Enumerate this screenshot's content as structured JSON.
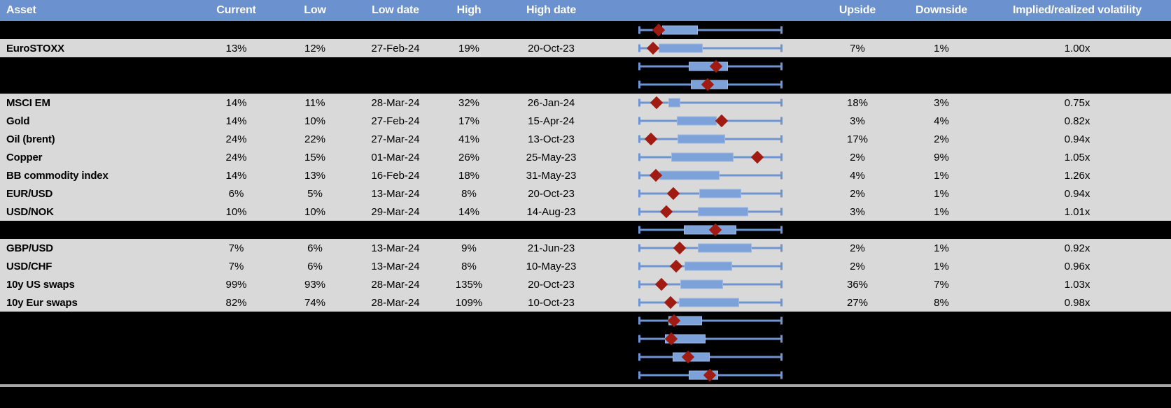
{
  "header": {
    "labels": [
      "Asset",
      "Current",
      "Low",
      "Low date",
      "High",
      "High date",
      "",
      "Upside",
      "Downside",
      "Implied/realized volatility"
    ]
  },
  "colors": {
    "header_bg": "#6b92ce",
    "row_bg": "#d9d9d9",
    "page_bg": "#000000",
    "whisker_blue": "#6e95d1",
    "box_fill_blue": "#7ca2d9",
    "box_border_blue": "#9cb8e4",
    "marker_red": "#a01b12",
    "divider_gray": "#a8a8a8",
    "header_text": "#ffffff",
    "cell_text": "#000000"
  },
  "chart_data": {
    "type": "table",
    "description": "Implied volatility table with per-row box-and-whisker plots; whiskers span the low-high range (normalized 0-100), box marks an inner range, red diamond marks the current level. Spacer rows are blacked-out rows showing only their box plots.",
    "boxplot_units": "percent of whisker span (0 = left whisker end, 100 = right whisker end)",
    "columns": [
      "Asset",
      "Current",
      "Low",
      "Low date",
      "High",
      "High date",
      "Box plot",
      "Upside",
      "Downside",
      "Implied/realized volatility"
    ],
    "rows": [
      {
        "kind": "spacer",
        "asset": "",
        "current": "",
        "low": "",
        "low_date": "",
        "high": "",
        "high_date": "",
        "upside": "",
        "downside": "",
        "ivrv": "",
        "box": {
          "q1": 16.3,
          "q3": 41.2,
          "marker": 13.9
        }
      },
      {
        "kind": "data",
        "asset": "EuroSTOXX",
        "current": "13%",
        "low": "12%",
        "low_date": "27-Feb-24",
        "high": "19%",
        "high_date": "20-Oct-23",
        "upside": "7%",
        "downside": "1%",
        "ivrv": "1.00x",
        "box": {
          "q1": 13.9,
          "q3": 44.6,
          "marker": 9.6
        }
      },
      {
        "kind": "spacer",
        "asset": "",
        "current": "",
        "low": "",
        "low_date": "",
        "high": "",
        "high_date": "",
        "upside": "",
        "downside": "",
        "ivrv": "",
        "box": {
          "q1": 35.0,
          "q3": 62.4,
          "marker": 53.7
        }
      },
      {
        "kind": "spacer",
        "asset": "",
        "current": "",
        "low": "",
        "low_date": "",
        "high": "",
        "high_date": "",
        "upside": "",
        "downside": "",
        "ivrv": "",
        "box": {
          "q1": 36.3,
          "q3": 62.4,
          "marker": 48.2
        }
      },
      {
        "kind": "data",
        "asset": "MSCI EM",
        "current": "14%",
        "low": "11%",
        "low_date": "28-Mar-24",
        "high": "32%",
        "high_date": "26-Jan-24",
        "upside": "18%",
        "downside": "3%",
        "ivrv": "0.75x",
        "box": {
          "q1": 20.7,
          "q3": 28.9,
          "marker": 12.3
        }
      },
      {
        "kind": "data",
        "asset": "Gold",
        "current": "14%",
        "low": "10%",
        "low_date": "27-Feb-24",
        "high": "17%",
        "high_date": "15-Apr-24",
        "upside": "3%",
        "downside": "4%",
        "ivrv": "0.82x",
        "box": {
          "q1": 26.5,
          "q3": 54.2,
          "marker": 57.8
        }
      },
      {
        "kind": "data",
        "asset": "Oil (brent)",
        "current": "24%",
        "low": "22%",
        "low_date": "27-Mar-24",
        "high": "41%",
        "high_date": "13-Oct-23",
        "upside": "17%",
        "downside": "2%",
        "ivrv": "0.94x",
        "box": {
          "q1": 27.0,
          "q3": 60.4,
          "marker": 8.5
        }
      },
      {
        "kind": "data",
        "asset": "Copper",
        "current": "24%",
        "low": "15%",
        "low_date": "01-Mar-24",
        "high": "26%",
        "high_date": "25-May-23",
        "upside": "2%",
        "downside": "9%",
        "ivrv": "1.05x",
        "box": {
          "q1": 22.4,
          "q3": 66.2,
          "marker": 82.8
        }
      },
      {
        "kind": "data",
        "asset": "BB commodity index",
        "current": "14%",
        "low": "13%",
        "low_date": "16-Feb-24",
        "high": "18%",
        "high_date": "31-May-23",
        "upside": "4%",
        "downside": "1%",
        "ivrv": "1.26x",
        "box": {
          "q1": 14.2,
          "q3": 56.2,
          "marker": 11.9
        }
      },
      {
        "kind": "data",
        "asset": "EUR/USD",
        "current": "6%",
        "low": "5%",
        "low_date": "13-Mar-24",
        "high": "8%",
        "high_date": "20-Oct-23",
        "upside": "2%",
        "downside": "1%",
        "ivrv": "0.94x",
        "box": {
          "q1": 42.0,
          "q3": 71.7,
          "marker": 24.0
        }
      },
      {
        "kind": "data",
        "asset": "USD/NOK",
        "current": "10%",
        "low": "10%",
        "low_date": "29-Mar-24",
        "high": "14%",
        "high_date": "14-Aug-23",
        "upside": "3%",
        "downside": "1%",
        "ivrv": "1.01x",
        "box": {
          "q1": 41.2,
          "q3": 76.3,
          "marker": 19.1
        }
      },
      {
        "kind": "spacer",
        "asset": "",
        "current": "",
        "low": "",
        "low_date": "",
        "high": "",
        "high_date": "",
        "upside": "",
        "downside": "",
        "ivrv": "",
        "box": {
          "q1": 31.4,
          "q3": 68.1,
          "marker": 53.4
        }
      },
      {
        "kind": "data",
        "asset": "GBP/USD",
        "current": "7%",
        "low": "6%",
        "low_date": "13-Mar-24",
        "high": "9%",
        "high_date": "21-Jun-23",
        "upside": "2%",
        "downside": "1%",
        "ivrv": "0.92x",
        "box": {
          "q1": 41.2,
          "q3": 78.8,
          "marker": 28.4
        }
      },
      {
        "kind": "data",
        "asset": "USD/CHF",
        "current": "7%",
        "low": "6%",
        "low_date": "13-Mar-24",
        "high": "8%",
        "high_date": "10-May-23",
        "upside": "2%",
        "downside": "1%",
        "ivrv": "0.96x",
        "box": {
          "q1": 31.7,
          "q3": 65.2,
          "marker": 26.0
        }
      },
      {
        "kind": "data",
        "asset": "10y US swaps",
        "current": "99%",
        "low": "93%",
        "low_date": "28-Mar-24",
        "high": "135%",
        "high_date": "20-Oct-23",
        "upside": "36%",
        "downside": "7%",
        "ivrv": "1.03x",
        "box": {
          "q1": 28.9,
          "q3": 58.6,
          "marker": 15.8
        }
      },
      {
        "kind": "data",
        "asset": "10y Eur swaps",
        "current": "82%",
        "low": "74%",
        "low_date": "28-Mar-24",
        "high": "109%",
        "high_date": "10-Oct-23",
        "upside": "27%",
        "downside": "8%",
        "ivrv": "0.98x",
        "box": {
          "q1": 28.1,
          "q3": 70.1,
          "marker": 21.9
        }
      },
      {
        "kind": "spacer",
        "asset": "",
        "current": "",
        "low": "",
        "low_date": "",
        "high": "",
        "high_date": "",
        "upside": "",
        "downside": "",
        "ivrv": "",
        "box": {
          "q1": 20.7,
          "q3": 43.9,
          "marker": 24.5
        }
      },
      {
        "kind": "spacer",
        "asset": "",
        "current": "",
        "low": "",
        "low_date": "",
        "high": "",
        "high_date": "",
        "upside": "",
        "downside": "",
        "ivrv": "",
        "box": {
          "q1": 17.9,
          "q3": 46.4,
          "marker": 22.4
        }
      },
      {
        "kind": "spacer",
        "asset": "",
        "current": "",
        "low": "",
        "low_date": "",
        "high": "",
        "high_date": "",
        "upside": "",
        "downside": "",
        "ivrv": "",
        "box": {
          "q1": 23.7,
          "q3": 49.7,
          "marker": 34.2
        }
      },
      {
        "kind": "spacer",
        "asset": "",
        "current": "",
        "low": "",
        "low_date": "",
        "high": "",
        "high_date": "",
        "upside": "",
        "downside": "",
        "ivrv": "",
        "box": {
          "q1": 34.6,
          "q3": 55.6,
          "marker": 49.3
        }
      }
    ]
  }
}
